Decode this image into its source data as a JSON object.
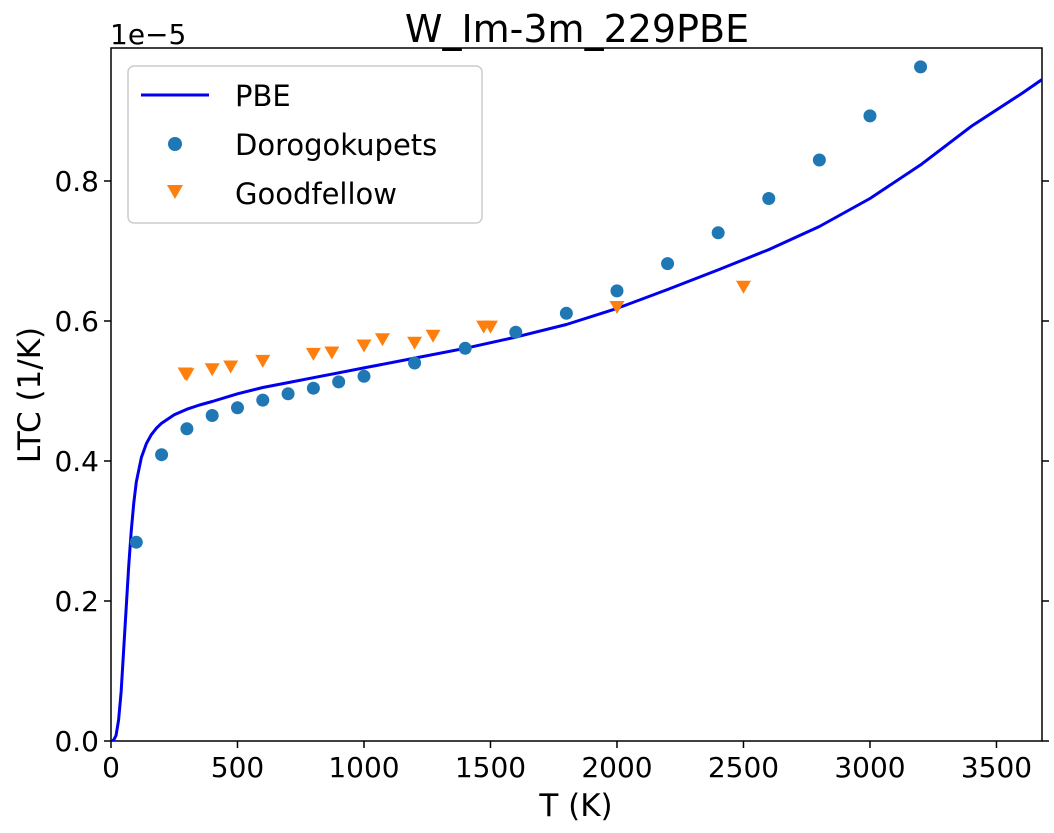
{
  "chart_data": {
    "type": "scatter",
    "title": "W_Im-3m_229PBE",
    "xlabel": "T (K)",
    "ylabel": "LTC (1/K)",
    "y_offset_label": "1e−5",
    "y_scale": 1e-05,
    "xlim": [
      0,
      3680
    ],
    "ylim": [
      0,
      0.99
    ],
    "x_ticks": [
      0,
      500,
      1000,
      1500,
      2000,
      2500,
      3000,
      3500
    ],
    "x_tick_labels": [
      "0",
      "500",
      "1000",
      "1500",
      "2000",
      "2500",
      "3000",
      "3500"
    ],
    "y_ticks": [
      0.0,
      0.2,
      0.4,
      0.6,
      0.8
    ],
    "y_tick_labels": [
      "0.0",
      "0.2",
      "0.4",
      "0.6",
      "0.8"
    ],
    "grid": false,
    "legend_position": "top-left",
    "series": [
      {
        "name": "PBE",
        "kind": "line",
        "color": "#0000ee",
        "x": [
          0,
          10,
          20,
          30,
          40,
          50,
          60,
          70,
          80,
          90,
          100,
          120,
          140,
          160,
          180,
          200,
          250,
          300,
          350,
          400,
          500,
          600,
          700,
          800,
          900,
          1000,
          1200,
          1400,
          1600,
          1800,
          2000,
          2200,
          2400,
          2600,
          2800,
          3000,
          3200,
          3400,
          3600,
          3680
        ],
        "y": [
          0.0,
          0.001,
          0.008,
          0.03,
          0.07,
          0.13,
          0.19,
          0.25,
          0.3,
          0.34,
          0.37,
          0.405,
          0.425,
          0.438,
          0.447,
          0.454,
          0.466,
          0.474,
          0.48,
          0.485,
          0.496,
          0.505,
          0.512,
          0.519,
          0.526,
          0.533,
          0.547,
          0.561,
          0.577,
          0.595,
          0.618,
          0.645,
          0.673,
          0.702,
          0.735,
          0.775,
          0.823,
          0.878,
          0.925,
          0.945
        ]
      },
      {
        "name": "Dorogokupets",
        "kind": "circle",
        "color": "#1f77b4",
        "x": [
          100,
          200,
          300,
          400,
          500,
          600,
          700,
          800,
          900,
          1000,
          1200,
          1400,
          1600,
          1800,
          2000,
          2200,
          2400,
          2600,
          2800,
          3000,
          3200
        ],
        "y": [
          0.284,
          0.409,
          0.446,
          0.465,
          0.476,
          0.487,
          0.496,
          0.504,
          0.513,
          0.521,
          0.54,
          0.561,
          0.584,
          0.611,
          0.643,
          0.682,
          0.726,
          0.775,
          0.83,
          0.893,
          0.963
        ]
      },
      {
        "name": "Goodfellow",
        "kind": "triangle-down",
        "color": "#ff7f0e",
        "x": [
          293,
          300,
          400,
          473,
          600,
          800,
          873,
          1000,
          1073,
          1200,
          1273,
          1473,
          1500,
          2000,
          2500
        ],
        "y": [
          0.525,
          0.524,
          0.531,
          0.535,
          0.543,
          0.553,
          0.555,
          0.565,
          0.574,
          0.569,
          0.579,
          0.592,
          0.592,
          0.62,
          0.649
        ]
      }
    ]
  }
}
